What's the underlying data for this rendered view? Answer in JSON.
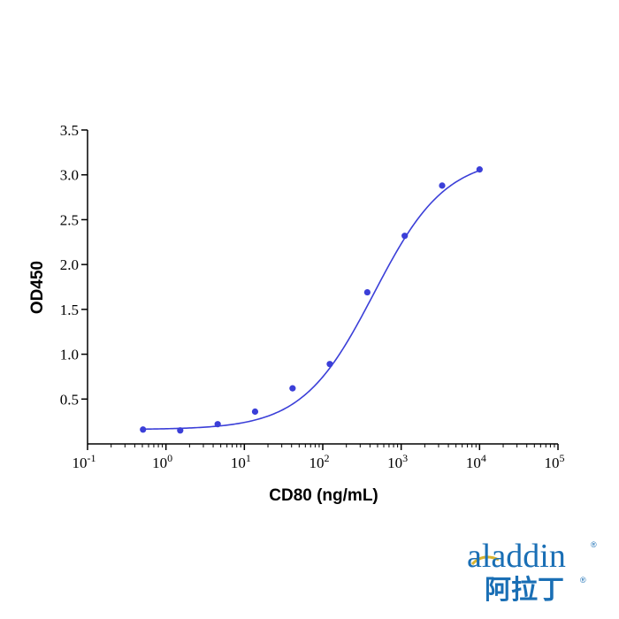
{
  "chart_data": {
    "type": "scatter",
    "xlabel": "CD80 (ng/mL)",
    "ylabel": "OD450",
    "x_scale": "log",
    "xlim": [
      0.1,
      100000
    ],
    "ylim": [
      0,
      3.5
    ],
    "x_ticks": [
      {
        "base": "10",
        "exp": "-1",
        "value": 0.1
      },
      {
        "base": "10",
        "exp": "0",
        "value": 1
      },
      {
        "base": "10",
        "exp": "1",
        "value": 10
      },
      {
        "base": "10",
        "exp": "2",
        "value": 100
      },
      {
        "base": "10",
        "exp": "3",
        "value": 1000
      },
      {
        "base": "10",
        "exp": "4",
        "value": 10000
      },
      {
        "base": "10",
        "exp": "5",
        "value": 100000
      }
    ],
    "y_ticks": [
      {
        "label": "0.5",
        "value": 0.5
      },
      {
        "label": "1.0",
        "value": 1.0
      },
      {
        "label": "1.5",
        "value": 1.5
      },
      {
        "label": "2.0",
        "value": 2.0
      },
      {
        "label": "2.5",
        "value": 2.5
      },
      {
        "label": "3.0",
        "value": 3.0
      },
      {
        "label": "3.5",
        "value": 3.5
      }
    ],
    "points": [
      {
        "x": 0.51,
        "y": 0.16
      },
      {
        "x": 1.52,
        "y": 0.15
      },
      {
        "x": 4.57,
        "y": 0.22
      },
      {
        "x": 13.7,
        "y": 0.36
      },
      {
        "x": 41.2,
        "y": 0.62
      },
      {
        "x": 123,
        "y": 0.89
      },
      {
        "x": 370,
        "y": 1.69
      },
      {
        "x": 1110,
        "y": 2.32
      },
      {
        "x": 3330,
        "y": 2.88
      },
      {
        "x": 10000,
        "y": 3.06
      }
    ],
    "fit": {
      "model": "4PL",
      "bottom": 0.16,
      "top": 3.2,
      "ec50": 450,
      "hill": 0.95,
      "x_range": [
        0.5,
        10000
      ]
    },
    "grid": false,
    "colors": {
      "series": "#3b3fd8",
      "axis": "#000000"
    }
  },
  "logo": {
    "word": "aladdin",
    "cjk": "阿拉丁",
    "reg": "®",
    "color": "#1a6fb5",
    "accent": "#d9b431"
  }
}
